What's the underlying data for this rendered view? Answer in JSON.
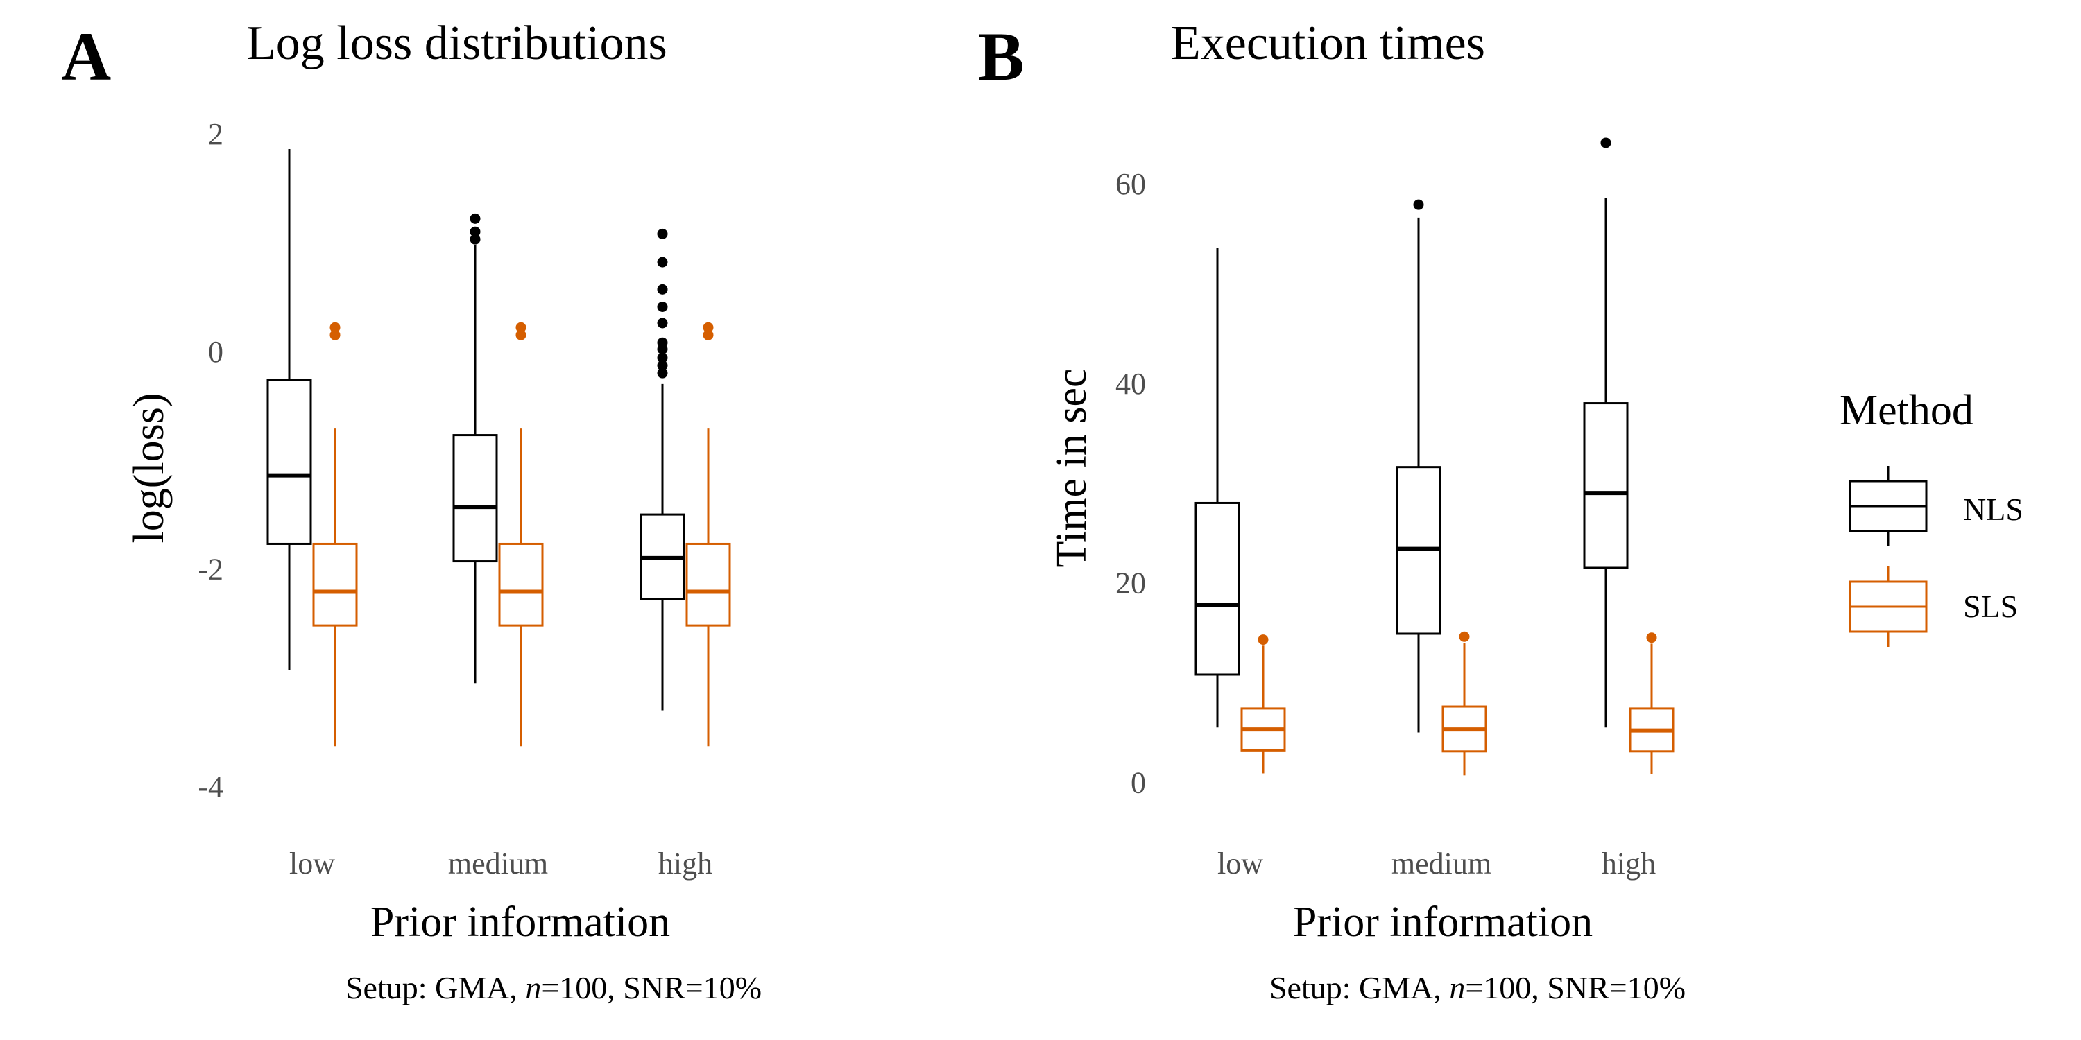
{
  "legend": {
    "title": "Method",
    "items": [
      {
        "name": "NLS",
        "color": "#000000"
      },
      {
        "name": "SLS",
        "color": "#d55e00"
      }
    ]
  },
  "chart_data": [
    {
      "panel": "A",
      "type": "box",
      "title": "Log loss distributions",
      "xlabel": "Prior information",
      "ylabel": "log(loss)",
      "caption": {
        "prefix": "Setup: GMA, ",
        "n_symbol": "n",
        "suffix": "=100, SNR=10%"
      },
      "categories": [
        "low",
        "medium",
        "high"
      ],
      "ylim": [
        -4.1,
        2.0
      ],
      "yticks": [
        -4,
        -2,
        0,
        2
      ],
      "ytick_labels": [
        "-4",
        "-2",
        "0",
        "2"
      ],
      "series": [
        {
          "name": "NLS",
          "boxes": [
            {
              "category": "low",
              "lower_whisker": -2.93,
              "q1": -1.77,
              "median": -1.14,
              "q3": -0.26,
              "upper_whisker": 1.86,
              "outliers": []
            },
            {
              "category": "medium",
              "lower_whisker": -3.05,
              "q1": -1.93,
              "median": -1.43,
              "q3": -0.77,
              "upper_whisker": 0.98,
              "outliers": [
                1.22,
                1.1,
                1.03
              ]
            },
            {
              "category": "high",
              "lower_whisker": -3.3,
              "q1": -2.28,
              "median": -1.9,
              "q3": -1.5,
              "upper_whisker": -0.3,
              "outliers": [
                1.08,
                0.82,
                0.57,
                0.41,
                0.26,
                0.08,
                0.02,
                -0.06,
                -0.13,
                -0.2
              ]
            }
          ]
        },
        {
          "name": "SLS",
          "boxes": [
            {
              "category": "low",
              "lower_whisker": -3.63,
              "q1": -2.52,
              "median": -2.21,
              "q3": -1.77,
              "upper_whisker": -0.71,
              "outliers": [
                0.22,
                0.15
              ]
            },
            {
              "category": "medium",
              "lower_whisker": -3.63,
              "q1": -2.52,
              "median": -2.21,
              "q3": -1.77,
              "upper_whisker": -0.71,
              "outliers": [
                0.22,
                0.15
              ]
            },
            {
              "category": "high",
              "lower_whisker": -3.63,
              "q1": -2.52,
              "median": -2.21,
              "q3": -1.77,
              "upper_whisker": -0.71,
              "outliers": [
                0.22,
                0.15
              ]
            }
          ]
        }
      ]
    },
    {
      "panel": "B",
      "type": "box",
      "title": "Execution times",
      "xlabel": "Prior information",
      "ylabel": "Time in sec",
      "caption": {
        "prefix": "Setup: GMA, ",
        "n_symbol": "n",
        "suffix": "=100, SNR=10%"
      },
      "categories": [
        "low",
        "medium",
        "high"
      ],
      "ylim": [
        -1.5,
        65
      ],
      "yticks": [
        0,
        20,
        40,
        60
      ],
      "ytick_labels": [
        "0",
        "20",
        "40",
        "60"
      ],
      "series": [
        {
          "name": "NLS",
          "boxes": [
            {
              "category": "low",
              "lower_whisker": 5.5,
              "q1": 10.8,
              "median": 17.8,
              "q3": 28.0,
              "upper_whisker": 53.6,
              "outliers": []
            },
            {
              "category": "medium",
              "lower_whisker": 5.0,
              "q1": 14.9,
              "median": 23.4,
              "q3": 31.6,
              "upper_whisker": 56.6,
              "outliers": [
                57.9
              ]
            },
            {
              "category": "high",
              "lower_whisker": 5.5,
              "q1": 21.5,
              "median": 29.0,
              "q3": 38.0,
              "upper_whisker": 58.6,
              "outliers": [
                64.1
              ]
            }
          ]
        },
        {
          "name": "SLS",
          "boxes": [
            {
              "category": "low",
              "lower_whisker": 0.9,
              "q1": 3.2,
              "median": 5.3,
              "q3": 7.4,
              "upper_whisker": 13.7,
              "outliers": [
                14.3
              ]
            },
            {
              "category": "medium",
              "lower_whisker": 0.7,
              "q1": 3.1,
              "median": 5.3,
              "q3": 7.6,
              "upper_whisker": 14.0,
              "outliers": [
                14.6
              ]
            },
            {
              "category": "high",
              "lower_whisker": 0.8,
              "q1": 3.1,
              "median": 5.2,
              "q3": 7.4,
              "upper_whisker": 13.9,
              "outliers": [
                14.5
              ]
            }
          ]
        }
      ]
    }
  ]
}
